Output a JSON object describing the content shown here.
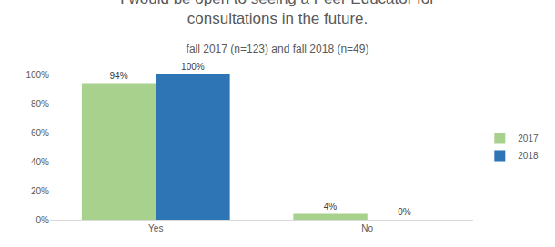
{
  "chart_data": {
    "type": "bar",
    "title": "I would be open to seeing a Peer Educator for consultations in the future.",
    "subtitle": "fall 2017 (n=123) and fall 2018 (n=49)",
    "categories": [
      "Yes",
      "No"
    ],
    "series": [
      {
        "name": "2017",
        "color": "#a9d18e",
        "values": [
          94,
          4
        ],
        "value_labels": [
          "94%",
          "4%"
        ]
      },
      {
        "name": "2018",
        "color": "#2e75b6",
        "values": [
          100,
          0
        ],
        "value_labels": [
          "100%",
          "0%"
        ]
      }
    ],
    "ylim": [
      0,
      100
    ],
    "yticks": [
      {
        "value": 0,
        "label": "0%"
      },
      {
        "value": 20,
        "label": "20%"
      },
      {
        "value": 40,
        "label": "40%"
      },
      {
        "value": 60,
        "label": "60%"
      },
      {
        "value": 80,
        "label": "80%"
      },
      {
        "value": 100,
        "label": "100%"
      }
    ],
    "grid": false,
    "legend": "right",
    "data_labels": true
  }
}
